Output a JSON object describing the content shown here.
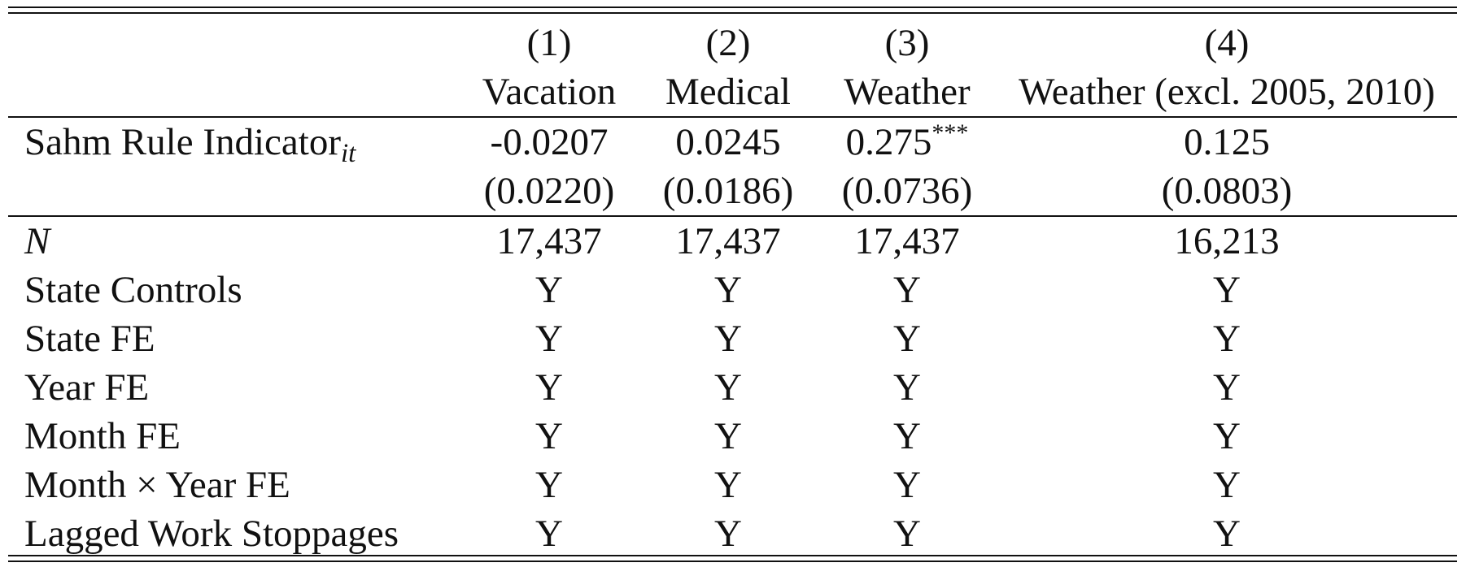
{
  "table": {
    "column_numbers": [
      "(1)",
      "(2)",
      "(3)",
      "(4)"
    ],
    "column_titles": [
      "Vacation",
      "Medical",
      "Weather",
      "Weather (excl. 2005, 2010)"
    ],
    "coefficient_row": {
      "label": "Sahm Rule Indicator",
      "label_subscript": "it",
      "estimates": [
        "-0.0207",
        "0.0245",
        "0.275",
        "0.125"
      ],
      "stars": [
        "",
        "",
        "***",
        ""
      ],
      "standard_errors": [
        "(0.0220)",
        "(0.0186)",
        "(0.0736)",
        "(0.0803)"
      ]
    },
    "observations_row": {
      "label": "N",
      "values": [
        "17,437",
        "17,437",
        "17,437",
        "16,213"
      ]
    },
    "control_rows": [
      {
        "label": "State Controls",
        "values": [
          "Y",
          "Y",
          "Y",
          "Y"
        ]
      },
      {
        "label": "State FE",
        "values": [
          "Y",
          "Y",
          "Y",
          "Y"
        ]
      },
      {
        "label": "Year FE",
        "values": [
          "Y",
          "Y",
          "Y",
          "Y"
        ]
      },
      {
        "label": "Month FE",
        "values": [
          "Y",
          "Y",
          "Y",
          "Y"
        ]
      },
      {
        "label": "Month × Year FE",
        "values": [
          "Y",
          "Y",
          "Y",
          "Y"
        ]
      },
      {
        "label": "Lagged Work Stoppages",
        "values": [
          "Y",
          "Y",
          "Y",
          "Y"
        ]
      }
    ]
  }
}
